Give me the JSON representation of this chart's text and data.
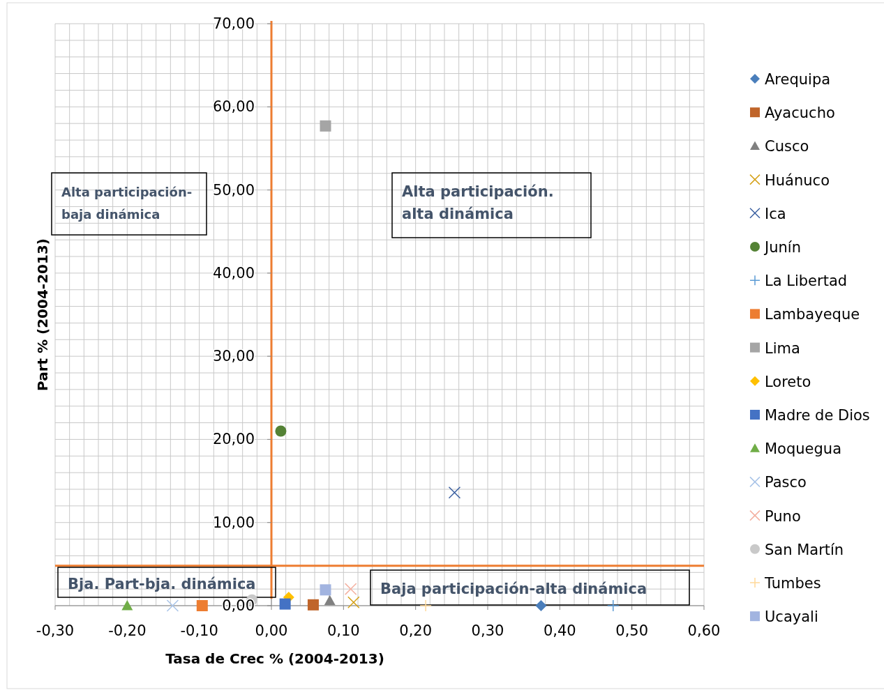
{
  "chart_data": {
    "type": "scatter",
    "xlabel": "Tasa de Crec % (2004-2013)",
    "ylabel": "Part % (2004-2013)",
    "xlim": [
      -0.3,
      0.6
    ],
    "ylim": [
      0,
      70
    ],
    "xticks": [
      {
        "value": -0.3,
        "label": "-0,30"
      },
      {
        "value": -0.2,
        "label": "-0,20"
      },
      {
        "value": -0.1,
        "label": "-0,10"
      },
      {
        "value": 0,
        "label": "0,00"
      },
      {
        "value": 0.1,
        "label": "0,10"
      },
      {
        "value": 0.2,
        "label": "0,20"
      },
      {
        "value": 0.3,
        "label": "0,30"
      },
      {
        "value": 0.4,
        "label": "0,40"
      },
      {
        "value": 0.5,
        "label": "0,50"
      },
      {
        "value": 0.6,
        "label": "0,60"
      }
    ],
    "yticks": [
      {
        "value": 0,
        "label": "0,00"
      },
      {
        "value": 10,
        "label": "10,00"
      },
      {
        "value": 20,
        "label": "20,00"
      },
      {
        "value": 30,
        "label": "30,00"
      },
      {
        "value": 40,
        "label": "40,00"
      },
      {
        "value": 50,
        "label": "50,00"
      },
      {
        "value": 60,
        "label": "60,00"
      },
      {
        "value": 70,
        "label": "70,00"
      }
    ],
    "grid": true,
    "legend": "right",
    "series": [
      {
        "name": "Arequipa",
        "color": "#4a7ebb",
        "marker": "diamond",
        "x": [
          0.374
        ],
        "values": [
          0
        ]
      },
      {
        "name": "Ayacucho",
        "color": "#c0652a",
        "marker": "square",
        "x": [
          0.058
        ],
        "values": [
          0.1
        ]
      },
      {
        "name": "Cusco",
        "color": "#808080",
        "marker": "triangle",
        "x": [
          0.081
        ],
        "values": [
          0.6
        ]
      },
      {
        "name": "Huánuco",
        "color": "#d4a017",
        "marker": "cross",
        "x": [
          0.114
        ],
        "values": [
          0.4
        ]
      },
      {
        "name": "Ica",
        "color": "#3a5fa0",
        "marker": "cross",
        "x": [
          0.254
        ],
        "values": [
          13.6
        ]
      },
      {
        "name": "Junín",
        "color": "#548235",
        "marker": "circle",
        "x": [
          0.013
        ],
        "values": [
          21.0
        ]
      },
      {
        "name": "La Libertad",
        "color": "#5b9bd5",
        "marker": "plus",
        "x": [
          0.474
        ],
        "values": [
          0
        ]
      },
      {
        "name": "Lambayeque",
        "color": "#ed7d31",
        "marker": "square",
        "x": [
          -0.096
        ],
        "values": [
          0
        ]
      },
      {
        "name": "Lima",
        "color": "#a5a5a5",
        "marker": "square",
        "x": [
          0.075
        ],
        "values": [
          57.7
        ]
      },
      {
        "name": "Loreto",
        "color": "#ffc000",
        "marker": "diamond",
        "x": [
          0.024
        ],
        "values": [
          1.0
        ]
      },
      {
        "name": "Madre de Dios",
        "color": "#4472c4",
        "marker": "square",
        "x": [
          0.019
        ],
        "values": [
          0.2
        ]
      },
      {
        "name": "Moquegua",
        "color": "#70ad47",
        "marker": "triangle",
        "x": [
          -0.2
        ],
        "values": [
          0
        ]
      },
      {
        "name": "Pasco",
        "color": "#a9c4e8",
        "marker": "cross",
        "x": [
          -0.137
        ],
        "values": [
          0
        ]
      },
      {
        "name": "Puno",
        "color": "#f4b0a0",
        "marker": "cross",
        "x": [
          0.11
        ],
        "values": [
          2.0
        ]
      },
      {
        "name": "San Martín",
        "color": "#c9c9c9",
        "marker": "circle",
        "x": [
          -0.027
        ],
        "values": [
          0.7
        ]
      },
      {
        "name": "Tumbes",
        "color": "#ffd999",
        "marker": "plus",
        "x": [
          0.214
        ],
        "values": [
          0
        ]
      },
      {
        "name": "Ucayali",
        "color": "#a2b4e0",
        "marker": "square",
        "x": [
          0.075
        ],
        "values": [
          1.9
        ]
      }
    ],
    "ref_lines": [
      {
        "axis": "x",
        "value": 0,
        "color": "#ed7d31"
      },
      {
        "axis": "y",
        "value": 4.8,
        "color": "#ed7d31"
      }
    ],
    "annotations": [
      "Alta participación-\nbaja dinámica",
      "Alta participación.\nalta dinámica",
      "Bja. Part-bja. dinámica",
      "Baja participación-alta dinámica"
    ]
  }
}
